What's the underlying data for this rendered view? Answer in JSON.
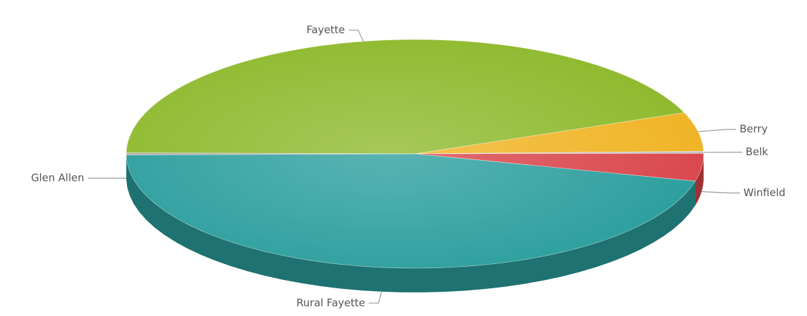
{
  "chart_data": {
    "type": "pie3d",
    "categories": [
      "Fayette",
      "Berry",
      "Belk",
      "Winfield",
      "Rural Fayette",
      "Glen Allen"
    ],
    "values": [
      44,
      5.5,
      0.3,
      3.9,
      46,
      0.3
    ],
    "colors": [
      "#8db92b",
      "#f0b323",
      "#c4c4c4",
      "#d9454b",
      "#2a9e9d",
      "#aaaaaa"
    ]
  }
}
